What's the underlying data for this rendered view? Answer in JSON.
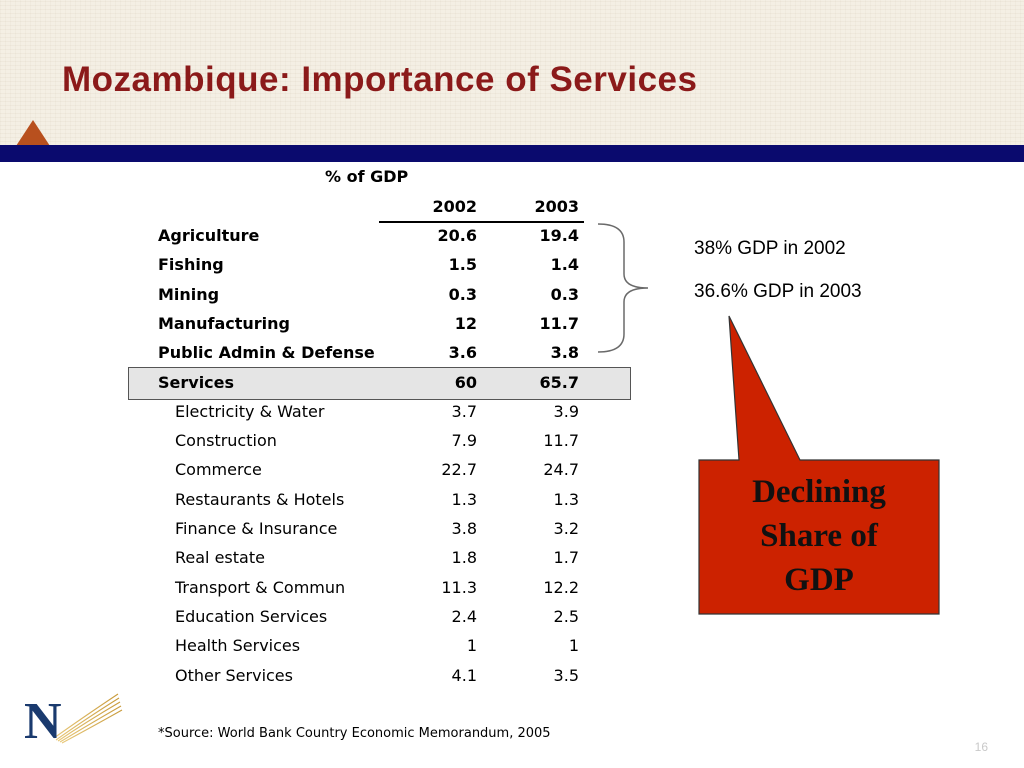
{
  "slide": {
    "title": "Mozambique: Importance of Services",
    "page_number": "16"
  },
  "table": {
    "unit_header": "% of GDP",
    "col_2002": "2002",
    "col_2003": "2003",
    "rows": [
      {
        "label": "Agriculture",
        "v2002": "20.6",
        "v2003": "19.4",
        "bold": true
      },
      {
        "label": "Fishing",
        "v2002": "1.5",
        "v2003": "1.4",
        "bold": true
      },
      {
        "label": "Mining",
        "v2002": "0.3",
        "v2003": "0.3",
        "bold": true
      },
      {
        "label": "Manufacturing",
        "v2002": "12",
        "v2003": "11.7",
        "bold": true
      },
      {
        "label": "Public Admin & Defense",
        "v2002": "3.6",
        "v2003": "3.8",
        "bold": true
      },
      {
        "label": "Services",
        "v2002": "60",
        "v2003": "65.7",
        "bold": true,
        "highlight": true
      },
      {
        "label": "Electricity & Water",
        "v2002": "3.7",
        "v2003": "3.9",
        "indent": true
      },
      {
        "label": "Construction",
        "v2002": "7.9",
        "v2003": "11.7",
        "indent": true
      },
      {
        "label": "Commerce",
        "v2002": "22.7",
        "v2003": "24.7",
        "indent": true
      },
      {
        "label": "Restaurants & Hotels",
        "v2002": "1.3",
        "v2003": "1.3",
        "indent": true
      },
      {
        "label": "Finance & Insurance",
        "v2002": "3.8",
        "v2003": "3.2",
        "indent": true
      },
      {
        "label": "Real estate",
        "v2002": "1.8",
        "v2003": "1.7",
        "indent": true
      },
      {
        "label": "Transport & Commun",
        "v2002": "11.3",
        "v2003": "12.2",
        "indent": true
      },
      {
        "label": "Education Services",
        "v2002": "2.4",
        "v2003": "2.5",
        "indent": true
      },
      {
        "label": "Health Services",
        "v2002": "1",
        "v2003": "1",
        "indent": true
      },
      {
        "label": "Other Services",
        "v2002": "4.1",
        "v2003": "3.5",
        "indent": true
      }
    ]
  },
  "annotation": {
    "line1": "38% GDP in 2002",
    "line2": "36.6% GDP in 2003"
  },
  "callout": {
    "line1": "Declining",
    "line2": "Share of",
    "line3": "GDP",
    "fill_color": "#cc2200"
  },
  "footer": {
    "source": "*Source: World Bank Country Economic Memorandum, 2005"
  },
  "colors": {
    "title": "#8b1a1a",
    "navy_bar": "#0a0a6e",
    "triangle": "#b8501e",
    "services_highlight": "#e5e5e5"
  }
}
